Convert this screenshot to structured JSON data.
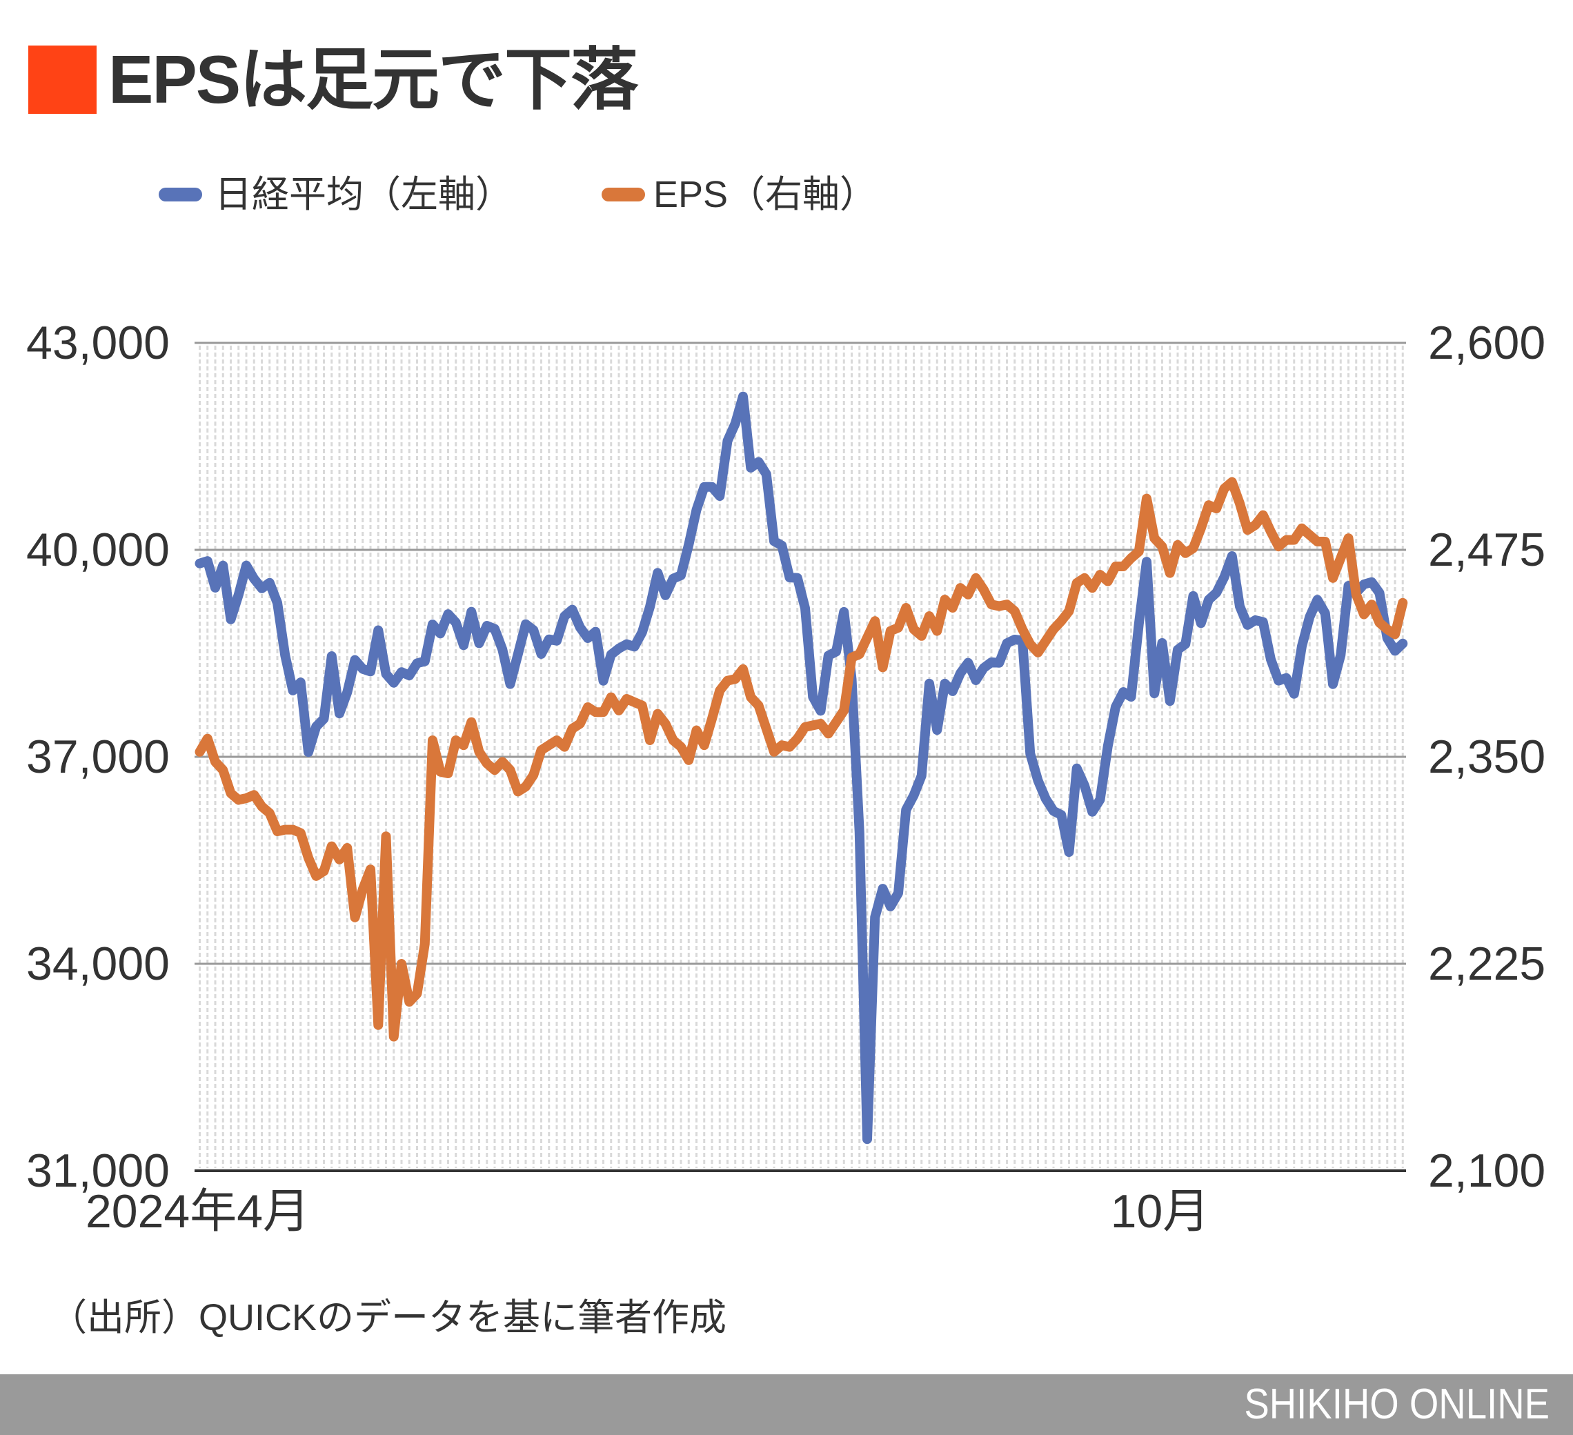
{
  "chart_data": {
    "type": "line",
    "title": "EPSは足元で下落",
    "title_marker_color": "#FF4315",
    "xlabel": "",
    "ylabel_left": "",
    "ylabel_right": "",
    "legend": {
      "position": "top"
    },
    "x_ticks": [
      {
        "label": "2024年4月",
        "index": 0
      },
      {
        "label": "10月",
        "index": 124
      }
    ],
    "ylim_left": [
      31000,
      43000
    ],
    "ylim_right": [
      2100,
      2600
    ],
    "yticks_left": [
      43000,
      40000,
      37000,
      34000,
      31000
    ],
    "yticks_left_labels": [
      "43,000",
      "40,000",
      "37,000",
      "34,000",
      "31,000"
    ],
    "yticks_right": [
      2600,
      2475,
      2350,
      2225,
      2100
    ],
    "yticks_right_labels": [
      "2,600",
      "2,475",
      "2,350",
      "2,225",
      "2,100"
    ],
    "grid": {
      "horizontal": true,
      "vertical_dotted": true
    },
    "series": [
      {
        "name": "日経平均（左軸）",
        "axis": "left",
        "color": "#5873B8",
        "values": [
          39803,
          39838,
          39451,
          39773,
          38992,
          39347,
          39773,
          39581,
          39442,
          39523,
          39232,
          38471,
          37961,
          38079,
          37068,
          37438,
          37552,
          38460,
          37628,
          37934,
          38405,
          38274,
          38236,
          38835,
          38202,
          38073,
          38229,
          38179,
          38356,
          38385,
          38920,
          38787,
          39069,
          38946,
          38617,
          39103,
          38646,
          38900,
          38855,
          38556,
          38054,
          38487,
          38923,
          38837,
          38490,
          38703,
          38683,
          39038,
          39134,
          38876,
          38720,
          38814,
          38102,
          38482,
          38570,
          38633,
          38596,
          38804,
          39173,
          39667,
          39341,
          39583,
          39631,
          40074,
          40580,
          40913,
          40912,
          40780,
          41580,
          41831,
          42224,
          41190,
          41275,
          41097,
          40126,
          40063,
          39599,
          39594,
          39154,
          37869,
          37667,
          38468,
          38525,
          39101,
          38126,
          35909,
          31458,
          34675,
          35089,
          34831,
          35025,
          36232,
          36442,
          36726,
          38062,
          37388,
          38062,
          37951,
          38211,
          38364,
          38110,
          38288,
          38371,
          38362,
          38647,
          38700,
          38686,
          37047,
          36657,
          36391,
          36215,
          36159,
          35619,
          36833,
          36581,
          36203,
          36380,
          37155,
          37723,
          37940,
          37870,
          38925,
          39829,
          37919,
          38651,
          37808,
          38552,
          38635,
          39332,
          38937,
          39277,
          39380,
          39605,
          39910,
          39180,
          38911,
          38981,
          38954,
          38411,
          38104,
          38143,
          37913,
          38605,
          39027,
          39277,
          39081,
          38053,
          38474,
          39480,
          39381,
          39500,
          39533,
          39376,
          38721,
          38535,
          38642
        ]
      },
      {
        "name": "EPS（右軸）",
        "axis": "right",
        "color": "#D9773A",
        "values": [
          2353,
          2361,
          2347,
          2342,
          2328,
          2324,
          2325,
          2327,
          2320,
          2316,
          2305,
          2306,
          2306,
          2304,
          2289,
          2278,
          2281,
          2296,
          2288,
          2295,
          2253,
          2270,
          2282,
          2188,
          2302,
          2181,
          2225,
          2202,
          2207,
          2237,
          2360,
          2341,
          2340,
          2360,
          2357,
          2371,
          2353,
          2346,
          2342,
          2347,
          2342,
          2329,
          2332,
          2339,
          2354,
          2357,
          2360,
          2356,
          2367,
          2370,
          2380,
          2377,
          2377,
          2386,
          2378,
          2385,
          2383,
          2381,
          2360,
          2376,
          2370,
          2360,
          2356,
          2348,
          2366,
          2357,
          2373,
          2390,
          2396,
          2397,
          2403,
          2386,
          2381,
          2367,
          2353,
          2357,
          2356,
          2361,
          2368,
          2369,
          2370,
          2364,
          2371,
          2378,
          2410,
          2412,
          2422,
          2432,
          2404,
          2426,
          2428,
          2440,
          2427,
          2423,
          2435,
          2426,
          2445,
          2440,
          2452,
          2448,
          2458,
          2451,
          2442,
          2441,
          2442,
          2438,
          2427,
          2418,
          2413,
          2420,
          2427,
          2432,
          2438,
          2455,
          2458,
          2452,
          2460,
          2456,
          2465,
          2465,
          2470,
          2474,
          2506,
          2482,
          2477,
          2461,
          2478,
          2473,
          2476,
          2488,
          2502,
          2500,
          2512,
          2516,
          2503,
          2487,
          2490,
          2496,
          2486,
          2477,
          2481,
          2481,
          2488,
          2484,
          2480,
          2480,
          2458,
          2470,
          2482,
          2448,
          2436,
          2442,
          2431,
          2427,
          2424,
          2443
        ]
      }
    ]
  },
  "source_note": "（出所）QUICKのデータを基に筆者作成",
  "footer": {
    "brand": "SHIKIHO ONLINE"
  }
}
